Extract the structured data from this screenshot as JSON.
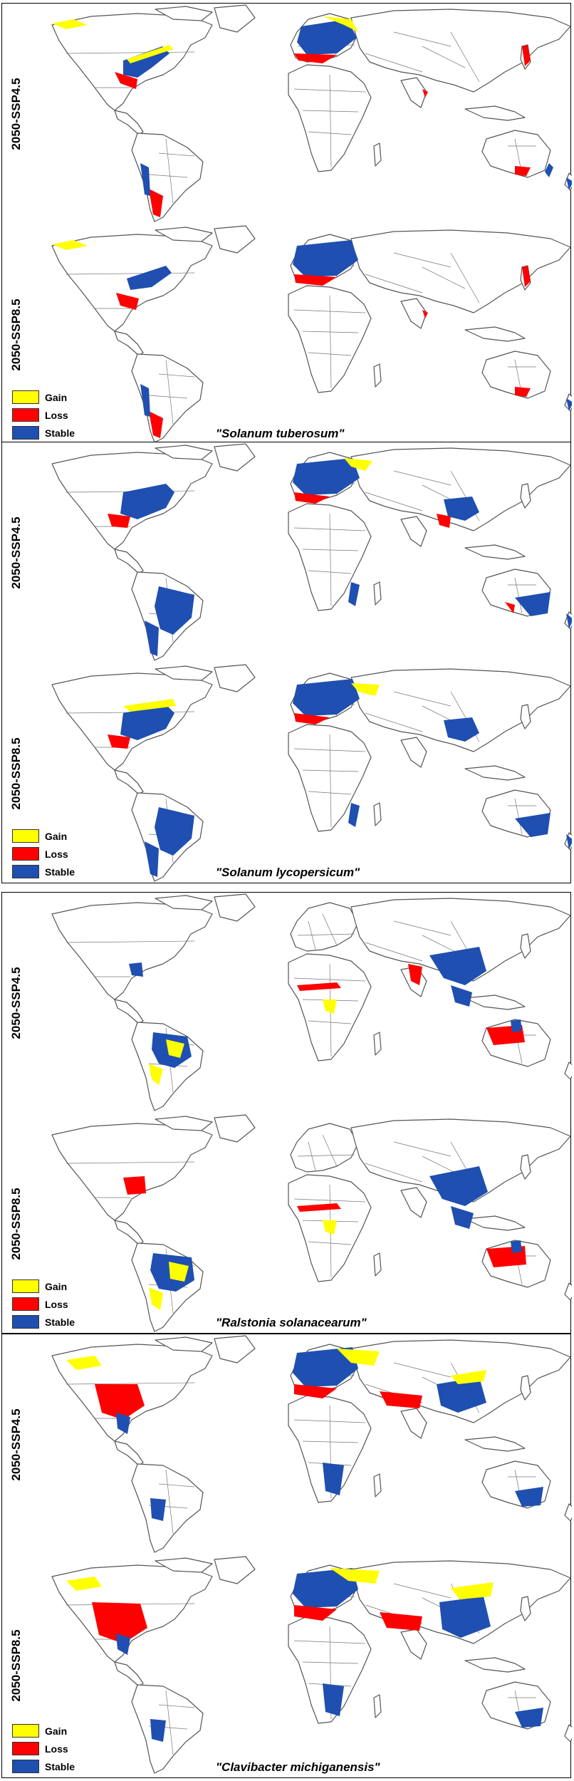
{
  "colors": {
    "gain": "#ffff00",
    "loss": "#ff0000",
    "stable": "#1f4fb0",
    "outline": "#555555"
  },
  "legend": [
    {
      "key": "gain",
      "label": "Gain"
    },
    {
      "key": "loss",
      "label": "Loss"
    },
    {
      "key": "stable",
      "label": "Stable"
    }
  ],
  "panels": [
    {
      "species": "\"Solanum tuberosum\"",
      "scenarios": [
        "2050-SSP4.5",
        "2050-SSP8.5"
      ]
    },
    {
      "species": "\"Solanum lycopersicum\"",
      "scenarios": [
        "2050-SSP4.5",
        "2050-SSP8.5"
      ]
    },
    {
      "species": "\"Ralstonia solanacearum\"",
      "scenarios": [
        "2050-SSP4.5",
        "2050-SSP8.5"
      ]
    },
    {
      "species": "\"Clavibacter michiganensis\"",
      "scenarios": [
        "2050-SSP4.5",
        "2050-SSP8.5"
      ]
    }
  ]
}
